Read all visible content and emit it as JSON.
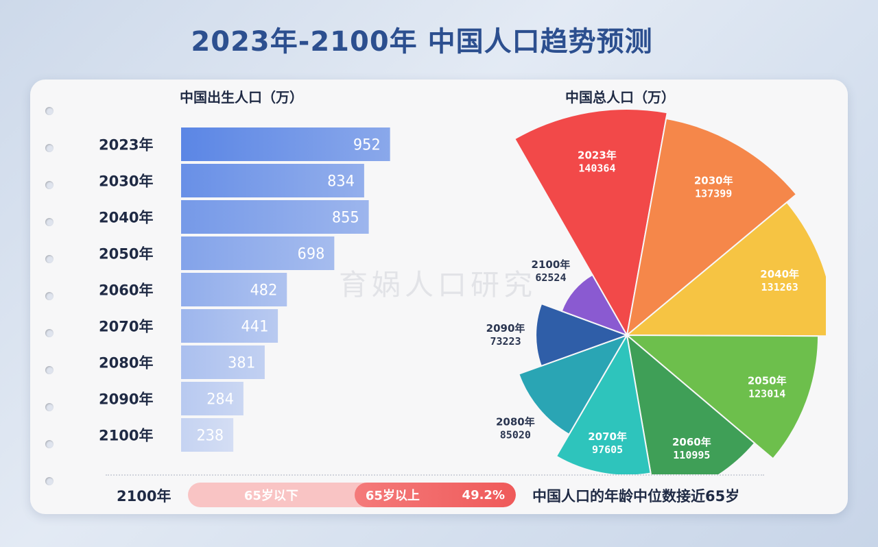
{
  "page": {
    "title": "2023年-2100年 中国人口趋势预测"
  },
  "chart_data": [
    {
      "type": "bar",
      "orientation": "horizontal",
      "title": "中国出生人口（万）",
      "categories": [
        "2023年",
        "2030年",
        "2040年",
        "2050年",
        "2060年",
        "2070年",
        "2080年",
        "2090年",
        "2100年"
      ],
      "values": [
        952,
        834,
        855,
        698,
        482,
        441,
        381,
        284,
        238
      ],
      "xlim": [
        0,
        1000
      ],
      "grid": false,
      "color": "#5b86e5"
    },
    {
      "type": "pie",
      "style": "rose",
      "title": "中国总人口（万）",
      "slices": [
        {
          "label": "2023年",
          "value": 140364,
          "color": "#f24949"
        },
        {
          "label": "2030年",
          "value": 137399,
          "color": "#f5874a"
        },
        {
          "label": "2040年",
          "value": 131263,
          "color": "#f6c443",
          "label_text": "131263"
        },
        {
          "label": "2050年",
          "value": 123014,
          "color": "#6dbf4c"
        },
        {
          "label": "2060年",
          "value": 110995,
          "color": "#3f9f57"
        },
        {
          "label": "2070年",
          "value": 97605,
          "color": "#2ec4bc"
        },
        {
          "label": "2080年",
          "value": 85020,
          "color": "#2aa5b4"
        },
        {
          "label": "2090年",
          "value": 73223,
          "color": "#2f5ea8"
        },
        {
          "label": "2100年",
          "value": 62524,
          "color": "#8a5ad1"
        }
      ]
    }
  ],
  "footer": {
    "year": "2100年",
    "under65_label": "65岁以下",
    "over65_label": "65岁以上",
    "over65_share": "49.2%",
    "over65_fraction": 0.492,
    "note": "中国人口的年龄中位数接近65岁"
  },
  "watermark": "育娲人口研究"
}
